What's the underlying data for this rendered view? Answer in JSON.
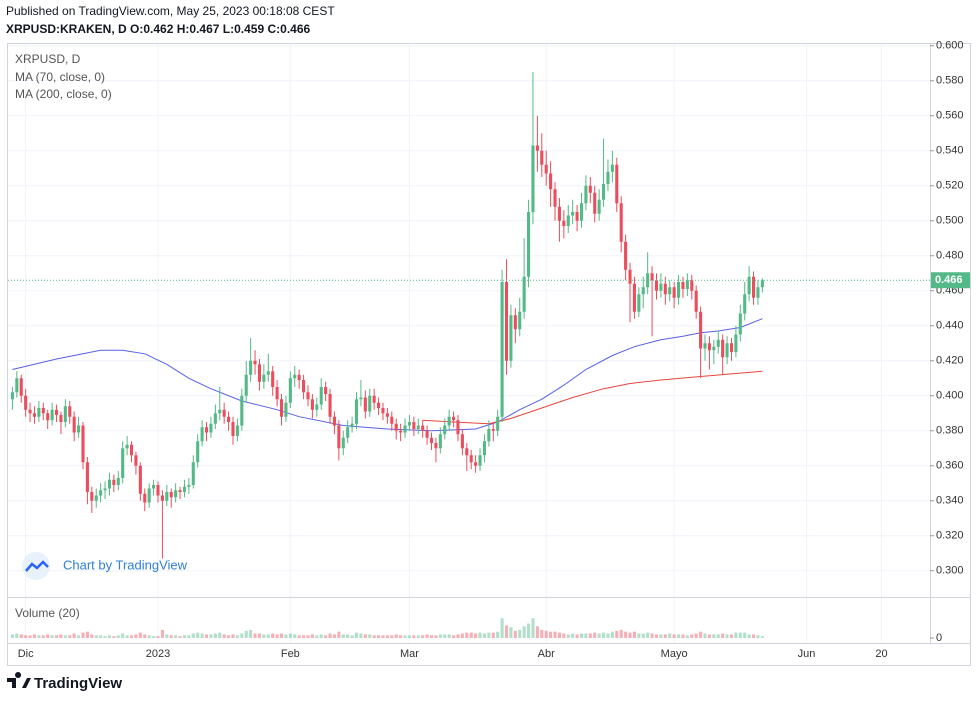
{
  "header": {
    "published": "Published on TradingView.com, May 25, 2023 00:18:08 CEST",
    "symbol": "XRPUSD:KRAKEN, D",
    "ohlc_labels": [
      "O:",
      "H:",
      "L:",
      "C:"
    ]
  },
  "chart_data": {
    "type": "candlestick",
    "title": "XRPUSD, D",
    "up_color": "#53b987",
    "down_color": "#eb4d5c",
    "grid": true,
    "xlim": [
      -1,
      208
    ],
    "xticks": [
      {
        "value": 3,
        "label": "Dic"
      },
      {
        "value": 33,
        "label": "2023"
      },
      {
        "value": 63,
        "label": "Feb"
      },
      {
        "value": 90,
        "label": "Mar"
      },
      {
        "value": 121,
        "label": "Abr"
      },
      {
        "value": 150,
        "label": "Mayo"
      },
      {
        "value": 180,
        "label": "Jun"
      },
      {
        "value": 197,
        "label": "20"
      }
    ],
    "ylim": [
      0.285,
      0.601
    ],
    "yticks": [
      {
        "value": 0.3,
        "label": "0.300"
      },
      {
        "value": 0.32,
        "label": "0.320"
      },
      {
        "value": 0.34,
        "label": "0.340"
      },
      {
        "value": 0.36,
        "label": "0.360"
      },
      {
        "value": 0.38,
        "label": "0.380"
      },
      {
        "value": 0.4,
        "label": "0.400"
      },
      {
        "value": 0.42,
        "label": "0.420"
      },
      {
        "value": 0.44,
        "label": "0.440"
      },
      {
        "value": 0.46,
        "label": "0.460"
      },
      {
        "value": 0.48,
        "label": "0.480"
      },
      {
        "value": 0.5,
        "label": "0.500"
      },
      {
        "value": 0.52,
        "label": "0.520"
      },
      {
        "value": 0.54,
        "label": "0.540"
      },
      {
        "value": 0.56,
        "label": "0.560"
      },
      {
        "value": 0.58,
        "label": "0.580"
      },
      {
        "value": 0.6,
        "label": "0.600"
      }
    ],
    "candles": [
      [
        0.398,
        0.405,
        0.392,
        0.402
      ],
      [
        0.402,
        0.414,
        0.399,
        0.41
      ],
      [
        0.41,
        0.412,
        0.396,
        0.4
      ],
      [
        0.4,
        0.404,
        0.388,
        0.392
      ],
      [
        0.392,
        0.396,
        0.385,
        0.39
      ],
      [
        0.39,
        0.394,
        0.384,
        0.388
      ],
      [
        0.388,
        0.397,
        0.385,
        0.393
      ],
      [
        0.393,
        0.396,
        0.386,
        0.39
      ],
      [
        0.39,
        0.392,
        0.381,
        0.386
      ],
      [
        0.386,
        0.396,
        0.383,
        0.392
      ],
      [
        0.392,
        0.395,
        0.385,
        0.389
      ],
      [
        0.389,
        0.391,
        0.378,
        0.385
      ],
      [
        0.385,
        0.398,
        0.382,
        0.394
      ],
      [
        0.394,
        0.397,
        0.384,
        0.388
      ],
      [
        0.388,
        0.391,
        0.374,
        0.379
      ],
      [
        0.379,
        0.388,
        0.376,
        0.383
      ],
      [
        0.383,
        0.385,
        0.358,
        0.362
      ],
      [
        0.362,
        0.365,
        0.338,
        0.345
      ],
      [
        0.345,
        0.348,
        0.333,
        0.34
      ],
      [
        0.34,
        0.347,
        0.336,
        0.343
      ],
      [
        0.343,
        0.35,
        0.339,
        0.346
      ],
      [
        0.346,
        0.351,
        0.341,
        0.347
      ],
      [
        0.347,
        0.356,
        0.343,
        0.352
      ],
      [
        0.352,
        0.355,
        0.345,
        0.349
      ],
      [
        0.349,
        0.357,
        0.346,
        0.353
      ],
      [
        0.353,
        0.374,
        0.35,
        0.37
      ],
      [
        0.37,
        0.377,
        0.366,
        0.372
      ],
      [
        0.372,
        0.374,
        0.362,
        0.366
      ],
      [
        0.366,
        0.368,
        0.355,
        0.36
      ],
      [
        0.36,
        0.362,
        0.34,
        0.344
      ],
      [
        0.344,
        0.347,
        0.334,
        0.339
      ],
      [
        0.339,
        0.35,
        0.336,
        0.347
      ],
      [
        0.347,
        0.352,
        0.343,
        0.349
      ],
      [
        0.349,
        0.351,
        0.339,
        0.343
      ],
      [
        0.343,
        0.346,
        0.307,
        0.34
      ],
      [
        0.34,
        0.349,
        0.337,
        0.345
      ],
      [
        0.345,
        0.347,
        0.336,
        0.342
      ],
      [
        0.342,
        0.35,
        0.339,
        0.346
      ],
      [
        0.346,
        0.348,
        0.341,
        0.345
      ],
      [
        0.345,
        0.352,
        0.342,
        0.348
      ],
      [
        0.348,
        0.353,
        0.344,
        0.349
      ],
      [
        0.349,
        0.366,
        0.347,
        0.362
      ],
      [
        0.362,
        0.378,
        0.359,
        0.374
      ],
      [
        0.374,
        0.386,
        0.371,
        0.382
      ],
      [
        0.382,
        0.385,
        0.374,
        0.379
      ],
      [
        0.379,
        0.388,
        0.376,
        0.384
      ],
      [
        0.384,
        0.395,
        0.381,
        0.39
      ],
      [
        0.39,
        0.405,
        0.386,
        0.392
      ],
      [
        0.392,
        0.396,
        0.384,
        0.388
      ],
      [
        0.388,
        0.391,
        0.38,
        0.385
      ],
      [
        0.385,
        0.388,
        0.372,
        0.377
      ],
      [
        0.377,
        0.387,
        0.374,
        0.383
      ],
      [
        0.383,
        0.404,
        0.38,
        0.4
      ],
      [
        0.4,
        0.42,
        0.396,
        0.412
      ],
      [
        0.412,
        0.433,
        0.408,
        0.42
      ],
      [
        0.42,
        0.426,
        0.412,
        0.418
      ],
      [
        0.418,
        0.421,
        0.403,
        0.408
      ],
      [
        0.408,
        0.418,
        0.404,
        0.412
      ],
      [
        0.412,
        0.424,
        0.408,
        0.414
      ],
      [
        0.414,
        0.417,
        0.4,
        0.405
      ],
      [
        0.405,
        0.409,
        0.394,
        0.398
      ],
      [
        0.398,
        0.401,
        0.383,
        0.388
      ],
      [
        0.388,
        0.4,
        0.385,
        0.396
      ],
      [
        0.396,
        0.414,
        0.393,
        0.41
      ],
      [
        0.41,
        0.417,
        0.405,
        0.412
      ],
      [
        0.412,
        0.415,
        0.404,
        0.409
      ],
      [
        0.409,
        0.412,
        0.398,
        0.402
      ],
      [
        0.402,
        0.406,
        0.394,
        0.398
      ],
      [
        0.398,
        0.401,
        0.387,
        0.392
      ],
      [
        0.392,
        0.399,
        0.388,
        0.395
      ],
      [
        0.395,
        0.41,
        0.392,
        0.405
      ],
      [
        0.405,
        0.408,
        0.397,
        0.401
      ],
      [
        0.401,
        0.404,
        0.384,
        0.388
      ],
      [
        0.388,
        0.391,
        0.378,
        0.383
      ],
      [
        0.383,
        0.386,
        0.363,
        0.37
      ],
      [
        0.37,
        0.38,
        0.366,
        0.376
      ],
      [
        0.376,
        0.386,
        0.373,
        0.382
      ],
      [
        0.382,
        0.388,
        0.379,
        0.384
      ],
      [
        0.384,
        0.402,
        0.381,
        0.398
      ],
      [
        0.398,
        0.409,
        0.394,
        0.399
      ],
      [
        0.399,
        0.403,
        0.387,
        0.391
      ],
      [
        0.391,
        0.404,
        0.388,
        0.4
      ],
      [
        0.4,
        0.404,
        0.392,
        0.396
      ],
      [
        0.396,
        0.399,
        0.389,
        0.393
      ],
      [
        0.393,
        0.396,
        0.386,
        0.39
      ],
      [
        0.39,
        0.393,
        0.384,
        0.388
      ],
      [
        0.388,
        0.391,
        0.38,
        0.384
      ],
      [
        0.384,
        0.387,
        0.375,
        0.38
      ],
      [
        0.38,
        0.384,
        0.374,
        0.379
      ],
      [
        0.379,
        0.387,
        0.376,
        0.383
      ],
      [
        0.383,
        0.389,
        0.38,
        0.385
      ],
      [
        0.385,
        0.388,
        0.377,
        0.381
      ],
      [
        0.381,
        0.387,
        0.378,
        0.383
      ],
      [
        0.383,
        0.386,
        0.376,
        0.38
      ],
      [
        0.38,
        0.383,
        0.372,
        0.376
      ],
      [
        0.376,
        0.379,
        0.369,
        0.373
      ],
      [
        0.373,
        0.376,
        0.362,
        0.37
      ],
      [
        0.37,
        0.382,
        0.367,
        0.378
      ],
      [
        0.378,
        0.387,
        0.375,
        0.383
      ],
      [
        0.383,
        0.392,
        0.38,
        0.388
      ],
      [
        0.388,
        0.391,
        0.382,
        0.386
      ],
      [
        0.386,
        0.389,
        0.374,
        0.378
      ],
      [
        0.378,
        0.381,
        0.366,
        0.37
      ],
      [
        0.37,
        0.373,
        0.357,
        0.366
      ],
      [
        0.366,
        0.369,
        0.358,
        0.362
      ],
      [
        0.362,
        0.366,
        0.356,
        0.36
      ],
      [
        0.36,
        0.37,
        0.357,
        0.366
      ],
      [
        0.366,
        0.378,
        0.362,
        0.374
      ],
      [
        0.374,
        0.386,
        0.371,
        0.381
      ],
      [
        0.381,
        0.385,
        0.374,
        0.38
      ],
      [
        0.38,
        0.392,
        0.377,
        0.388
      ],
      [
        0.388,
        0.472,
        0.385,
        0.465
      ],
      [
        0.465,
        0.478,
        0.412,
        0.42
      ],
      [
        0.42,
        0.452,
        0.416,
        0.446
      ],
      [
        0.446,
        0.45,
        0.43,
        0.438
      ],
      [
        0.438,
        0.456,
        0.434,
        0.448
      ],
      [
        0.448,
        0.49,
        0.444,
        0.468
      ],
      [
        0.468,
        0.512,
        0.462,
        0.505
      ],
      [
        0.505,
        0.585,
        0.498,
        0.543
      ],
      [
        0.543,
        0.56,
        0.528,
        0.54
      ],
      [
        0.54,
        0.55,
        0.525,
        0.532
      ],
      [
        0.532,
        0.54,
        0.52,
        0.527
      ],
      [
        0.527,
        0.534,
        0.508,
        0.518
      ],
      [
        0.518,
        0.522,
        0.5,
        0.508
      ],
      [
        0.508,
        0.513,
        0.488,
        0.5
      ],
      [
        0.5,
        0.506,
        0.49,
        0.497
      ],
      [
        0.497,
        0.509,
        0.493,
        0.503
      ],
      [
        0.503,
        0.512,
        0.498,
        0.505
      ],
      [
        0.505,
        0.509,
        0.494,
        0.5
      ],
      [
        0.5,
        0.516,
        0.496,
        0.51
      ],
      [
        0.51,
        0.526,
        0.506,
        0.52
      ],
      [
        0.52,
        0.525,
        0.51,
        0.516
      ],
      [
        0.516,
        0.52,
        0.499,
        0.504
      ],
      [
        0.504,
        0.518,
        0.5,
        0.512
      ],
      [
        0.512,
        0.547,
        0.508,
        0.521
      ],
      [
        0.521,
        0.535,
        0.517,
        0.528
      ],
      [
        0.528,
        0.54,
        0.522,
        0.532
      ],
      [
        0.532,
        0.536,
        0.505,
        0.51
      ],
      [
        0.51,
        0.514,
        0.482,
        0.488
      ],
      [
        0.488,
        0.492,
        0.466,
        0.472
      ],
      [
        0.472,
        0.476,
        0.442,
        0.464
      ],
      [
        0.464,
        0.468,
        0.444,
        0.448
      ],
      [
        0.448,
        0.462,
        0.445,
        0.458
      ],
      [
        0.458,
        0.468,
        0.45,
        0.462
      ],
      [
        0.462,
        0.482,
        0.458,
        0.47
      ],
      [
        0.47,
        0.474,
        0.434,
        0.466
      ],
      [
        0.466,
        0.47,
        0.455,
        0.46
      ],
      [
        0.46,
        0.47,
        0.456,
        0.464
      ],
      [
        0.464,
        0.468,
        0.452,
        0.458
      ],
      [
        0.458,
        0.466,
        0.454,
        0.462
      ],
      [
        0.462,
        0.465,
        0.45,
        0.456
      ],
      [
        0.456,
        0.469,
        0.452,
        0.465
      ],
      [
        0.465,
        0.468,
        0.456,
        0.461
      ],
      [
        0.461,
        0.47,
        0.457,
        0.466
      ],
      [
        0.466,
        0.469,
        0.455,
        0.46
      ],
      [
        0.46,
        0.463,
        0.444,
        0.448
      ],
      [
        0.448,
        0.451,
        0.41,
        0.427
      ],
      [
        0.427,
        0.435,
        0.42,
        0.43
      ],
      [
        0.43,
        0.434,
        0.415,
        0.426
      ],
      [
        0.426,
        0.432,
        0.418,
        0.428
      ],
      [
        0.428,
        0.437,
        0.424,
        0.432
      ],
      [
        0.432,
        0.435,
        0.412,
        0.422
      ],
      [
        0.422,
        0.434,
        0.418,
        0.43
      ],
      [
        0.43,
        0.433,
        0.42,
        0.425
      ],
      [
        0.425,
        0.44,
        0.422,
        0.435
      ],
      [
        0.435,
        0.452,
        0.431,
        0.447
      ],
      [
        0.447,
        0.465,
        0.443,
        0.458
      ],
      [
        0.458,
        0.474,
        0.454,
        0.468
      ],
      [
        0.468,
        0.471,
        0.452,
        0.456
      ],
      [
        0.456,
        0.466,
        0.452,
        0.462
      ],
      [
        0.462,
        0.467,
        0.459,
        0.466
      ]
    ],
    "ma": [
      {
        "name": "MA (70, close, 0)",
        "color": "#5860e6",
        "x": [
          0,
          10,
          20,
          25,
          30,
          35,
          40,
          45,
          52,
          60,
          65,
          75,
          85,
          95,
          105,
          110,
          115,
          120,
          125,
          130,
          136,
          141,
          147,
          152,
          156,
          160,
          165,
          170
        ],
        "values": [
          0.415,
          0.421,
          0.426,
          0.426,
          0.424,
          0.418,
          0.41,
          0.404,
          0.397,
          0.392,
          0.388,
          0.383,
          0.381,
          0.38,
          0.381,
          0.385,
          0.392,
          0.398,
          0.406,
          0.415,
          0.423,
          0.428,
          0.432,
          0.434,
          0.436,
          0.437,
          0.439,
          0.444
        ]
      },
      {
        "name": "MA (200, close, 0)",
        "color": "#e8453c",
        "x": [
          93,
          100,
          108,
          113,
          120,
          127,
          134,
          140,
          147,
          156,
          163,
          170
        ],
        "values": [
          0.386,
          0.385,
          0.384,
          0.387,
          0.393,
          0.399,
          0.404,
          0.407,
          0.409,
          0.411,
          0.4125,
          0.414
        ]
      }
    ],
    "volume": {
      "title": "Volume (20)",
      "ylim": [
        0,
        40
      ],
      "yticks": [
        0
      ],
      "values": [
        4,
        5,
        4,
        3,
        3,
        4,
        3,
        3,
        4,
        3,
        3,
        4,
        3,
        3,
        5,
        3,
        6,
        7,
        4,
        3,
        3,
        2,
        3,
        2,
        3,
        5,
        3,
        3,
        4,
        6,
        4,
        3,
        2,
        2,
        9,
        4,
        3,
        3,
        2,
        3,
        3,
        5,
        6,
        5,
        4,
        4,
        5,
        6,
        4,
        3,
        4,
        3,
        5,
        8,
        9,
        5,
        5,
        4,
        4,
        5,
        4,
        5,
        4,
        5,
        4,
        3,
        3,
        3,
        4,
        3,
        4,
        3,
        5,
        4,
        7,
        4,
        4,
        3,
        6,
        5,
        4,
        4,
        3,
        3,
        3,
        3,
        3,
        4,
        3,
        3,
        3,
        3,
        3,
        3,
        4,
        3,
        3,
        4,
        4,
        4,
        3,
        4,
        5,
        6,
        6,
        5,
        6,
        5,
        6,
        6,
        7,
        22,
        14,
        12,
        8,
        9,
        13,
        16,
        22,
        13,
        9,
        8,
        7,
        7,
        6,
        5,
        4,
        5,
        4,
        5,
        5,
        5,
        6,
        5,
        6,
        5,
        7,
        8,
        9,
        7,
        6,
        7,
        5,
        5,
        6,
        5,
        4,
        4,
        4,
        5,
        4,
        4,
        4,
        3,
        4,
        5,
        7,
        5,
        4,
        4,
        4,
        5,
        4,
        4,
        6,
        6,
        6,
        4,
        4,
        3,
        2
      ]
    },
    "watermark": "Chart by TradingView"
  },
  "footer": {
    "brand": "TradingView"
  }
}
